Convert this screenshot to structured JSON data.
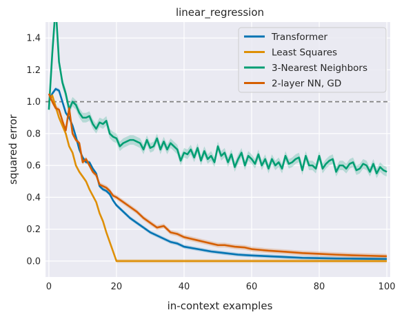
{
  "chart_data": {
    "type": "line",
    "title": "linear_regression",
    "xlabel": "in-context examples",
    "ylabel": "squared error",
    "xlim": [
      -1,
      101
    ],
    "ylim": [
      -0.1,
      1.5
    ],
    "xticks": [
      0,
      20,
      40,
      60,
      80,
      100
    ],
    "yticks": [
      0.0,
      0.2,
      0.4,
      0.6,
      0.8,
      1.0,
      1.2,
      1.4
    ],
    "grid": true,
    "legend_position": "top-right",
    "reference_line": {
      "y": 1.0,
      "style": "dashed",
      "color": "#808080"
    },
    "series": [
      {
        "name": "Transformer",
        "color": "#0173b2",
        "points": [
          [
            0,
            1.0
          ],
          [
            1,
            1.05
          ],
          [
            2,
            1.08
          ],
          [
            3,
            1.07
          ],
          [
            4,
            1.0
          ],
          [
            5,
            0.93
          ],
          [
            6,
            0.9
          ],
          [
            7,
            0.85
          ],
          [
            8,
            0.78
          ],
          [
            9,
            0.7
          ],
          [
            10,
            0.65
          ],
          [
            11,
            0.62
          ],
          [
            12,
            0.62
          ],
          [
            13,
            0.58
          ],
          [
            14,
            0.55
          ],
          [
            15,
            0.47
          ],
          [
            16,
            0.45
          ],
          [
            17,
            0.44
          ],
          [
            18,
            0.42
          ],
          [
            19,
            0.38
          ],
          [
            20,
            0.35
          ],
          [
            22,
            0.31
          ],
          [
            24,
            0.27
          ],
          [
            26,
            0.24
          ],
          [
            28,
            0.21
          ],
          [
            30,
            0.18
          ],
          [
            32,
            0.16
          ],
          [
            34,
            0.14
          ],
          [
            36,
            0.12
          ],
          [
            38,
            0.11
          ],
          [
            40,
            0.09
          ],
          [
            44,
            0.075
          ],
          [
            48,
            0.06
          ],
          [
            52,
            0.05
          ],
          [
            56,
            0.04
          ],
          [
            60,
            0.035
          ],
          [
            65,
            0.03
          ],
          [
            70,
            0.025
          ],
          [
            75,
            0.02
          ],
          [
            80,
            0.018
          ],
          [
            85,
            0.016
          ],
          [
            90,
            0.015
          ],
          [
            95,
            0.014
          ],
          [
            100,
            0.013
          ]
        ],
        "band": 0.012
      },
      {
        "name": "Least Squares",
        "color": "#de8f05",
        "points": [
          [
            0,
            1.0
          ],
          [
            1,
            1.04
          ],
          [
            2,
            0.97
          ],
          [
            3,
            0.9
          ],
          [
            4,
            0.85
          ],
          [
            5,
            0.8
          ],
          [
            6,
            0.72
          ],
          [
            7,
            0.68
          ],
          [
            8,
            0.6
          ],
          [
            9,
            0.56
          ],
          [
            10,
            0.53
          ],
          [
            11,
            0.5
          ],
          [
            12,
            0.45
          ],
          [
            13,
            0.41
          ],
          [
            14,
            0.37
          ],
          [
            15,
            0.3
          ],
          [
            16,
            0.25
          ],
          [
            17,
            0.18
          ],
          [
            18,
            0.12
          ],
          [
            19,
            0.06
          ],
          [
            20,
            0.0
          ],
          [
            30,
            0.0
          ],
          [
            40,
            0.0
          ],
          [
            50,
            0.0
          ],
          [
            60,
            0.0
          ],
          [
            70,
            0.0
          ],
          [
            80,
            0.0
          ],
          [
            90,
            0.0
          ],
          [
            100,
            0.0
          ]
        ],
        "band": 0.012
      },
      {
        "name": "3-Nearest Neighbors",
        "color": "#029e73",
        "points": [
          [
            0,
            0.95
          ],
          [
            1,
            1.3
          ],
          [
            2,
            1.6
          ],
          [
            3,
            1.25
          ],
          [
            4,
            1.12
          ],
          [
            5,
            1.05
          ],
          [
            6,
            0.95
          ],
          [
            7,
            1.0
          ],
          [
            8,
            0.98
          ],
          [
            9,
            0.93
          ],
          [
            10,
            0.9
          ],
          [
            11,
            0.9
          ],
          [
            12,
            0.91
          ],
          [
            13,
            0.86
          ],
          [
            14,
            0.83
          ],
          [
            15,
            0.87
          ],
          [
            16,
            0.86
          ],
          [
            17,
            0.88
          ],
          [
            18,
            0.8
          ],
          [
            19,
            0.78
          ],
          [
            20,
            0.77
          ],
          [
            21,
            0.72
          ],
          [
            22,
            0.74
          ],
          [
            23,
            0.75
          ],
          [
            24,
            0.76
          ],
          [
            25,
            0.76
          ],
          [
            26,
            0.75
          ],
          [
            27,
            0.74
          ],
          [
            28,
            0.7
          ],
          [
            29,
            0.76
          ],
          [
            30,
            0.71
          ],
          [
            31,
            0.72
          ],
          [
            32,
            0.77
          ],
          [
            33,
            0.7
          ],
          [
            34,
            0.75
          ],
          [
            35,
            0.7
          ],
          [
            36,
            0.74
          ],
          [
            37,
            0.72
          ],
          [
            38,
            0.7
          ],
          [
            39,
            0.63
          ],
          [
            40,
            0.68
          ],
          [
            41,
            0.67
          ],
          [
            42,
            0.7
          ],
          [
            43,
            0.65
          ],
          [
            44,
            0.71
          ],
          [
            45,
            0.63
          ],
          [
            46,
            0.69
          ],
          [
            47,
            0.64
          ],
          [
            48,
            0.66
          ],
          [
            49,
            0.62
          ],
          [
            50,
            0.72
          ],
          [
            51,
            0.66
          ],
          [
            52,
            0.68
          ],
          [
            53,
            0.62
          ],
          [
            54,
            0.67
          ],
          [
            55,
            0.59
          ],
          [
            56,
            0.64
          ],
          [
            57,
            0.68
          ],
          [
            58,
            0.6
          ],
          [
            59,
            0.66
          ],
          [
            60,
            0.64
          ],
          [
            61,
            0.61
          ],
          [
            62,
            0.67
          ],
          [
            63,
            0.6
          ],
          [
            64,
            0.64
          ],
          [
            65,
            0.58
          ],
          [
            66,
            0.64
          ],
          [
            67,
            0.6
          ],
          [
            68,
            0.62
          ],
          [
            69,
            0.58
          ],
          [
            70,
            0.66
          ],
          [
            71,
            0.61
          ],
          [
            72,
            0.62
          ],
          [
            73,
            0.64
          ],
          [
            74,
            0.65
          ],
          [
            75,
            0.57
          ],
          [
            76,
            0.66
          ],
          [
            77,
            0.6
          ],
          [
            78,
            0.6
          ],
          [
            79,
            0.58
          ],
          [
            80,
            0.66
          ],
          [
            81,
            0.58
          ],
          [
            82,
            0.61
          ],
          [
            83,
            0.63
          ],
          [
            84,
            0.64
          ],
          [
            85,
            0.56
          ],
          [
            86,
            0.6
          ],
          [
            87,
            0.6
          ],
          [
            88,
            0.58
          ],
          [
            89,
            0.61
          ],
          [
            90,
            0.62
          ],
          [
            91,
            0.57
          ],
          [
            92,
            0.58
          ],
          [
            93,
            0.61
          ],
          [
            94,
            0.6
          ],
          [
            95,
            0.56
          ],
          [
            96,
            0.61
          ],
          [
            97,
            0.55
          ],
          [
            98,
            0.59
          ],
          [
            99,
            0.57
          ],
          [
            100,
            0.56
          ]
        ],
        "band": 0.03
      },
      {
        "name": "2-layer NN, GD",
        "color": "#d55e00",
        "points": [
          [
            0,
            1.05
          ],
          [
            1,
            1.0
          ],
          [
            2,
            0.96
          ],
          [
            3,
            0.95
          ],
          [
            4,
            0.88
          ],
          [
            5,
            0.82
          ],
          [
            6,
            0.96
          ],
          [
            7,
            0.8
          ],
          [
            8,
            0.76
          ],
          [
            9,
            0.74
          ],
          [
            10,
            0.62
          ],
          [
            11,
            0.64
          ],
          [
            12,
            0.6
          ],
          [
            13,
            0.56
          ],
          [
            14,
            0.54
          ],
          [
            15,
            0.48
          ],
          [
            16,
            0.47
          ],
          [
            17,
            0.46
          ],
          [
            18,
            0.44
          ],
          [
            19,
            0.41
          ],
          [
            20,
            0.4
          ],
          [
            22,
            0.37
          ],
          [
            24,
            0.34
          ],
          [
            26,
            0.31
          ],
          [
            28,
            0.27
          ],
          [
            30,
            0.24
          ],
          [
            32,
            0.21
          ],
          [
            34,
            0.22
          ],
          [
            36,
            0.18
          ],
          [
            38,
            0.17
          ],
          [
            40,
            0.15
          ],
          [
            42,
            0.14
          ],
          [
            44,
            0.13
          ],
          [
            46,
            0.12
          ],
          [
            48,
            0.11
          ],
          [
            50,
            0.1
          ],
          [
            52,
            0.1
          ],
          [
            55,
            0.09
          ],
          [
            58,
            0.085
          ],
          [
            60,
            0.075
          ],
          [
            65,
            0.065
          ],
          [
            70,
            0.058
          ],
          [
            75,
            0.05
          ],
          [
            80,
            0.045
          ],
          [
            85,
            0.04
          ],
          [
            90,
            0.036
          ],
          [
            95,
            0.033
          ],
          [
            100,
            0.03
          ]
        ],
        "band": 0.015
      }
    ]
  }
}
